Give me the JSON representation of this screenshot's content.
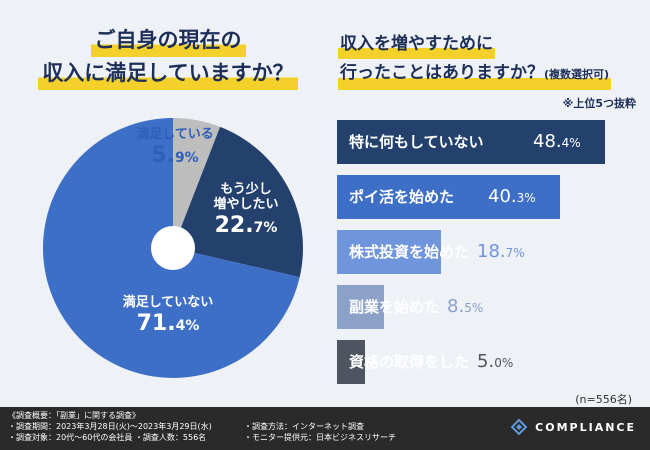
{
  "left_title": [
    "ご自身の現在の",
    "収入に満足していますか？"
  ],
  "right_title": [
    "収入を増やすために",
    "行ったことはありますか？",
    "(複数選択可)"
  ],
  "top5_note": "※上位5つ抜粋",
  "n_note": "(n=556名)",
  "chart_data": [
    {
      "type": "pie",
      "title": "ご自身の現在の 収入に満足していますか？",
      "slices": [
        {
          "label": "満足している",
          "value": 5.9,
          "display": "5.",
          "display_small": "9%",
          "color": "#bdbdbd",
          "label_color": "#2f5fb8"
        },
        {
          "label": "もう少し増やしたい",
          "lines": [
            "もう少し",
            "増やしたい"
          ],
          "value": 22.7,
          "display": "22.",
          "display_small": "7%",
          "color": "#24416e",
          "label_color": "#ffffff"
        },
        {
          "label": "満足していない",
          "value": 71.4,
          "display": "71.",
          "display_small": "4%",
          "color": "#3d6fc7",
          "label_color": "#ffffff"
        }
      ]
    },
    {
      "type": "bar",
      "orientation": "horizontal",
      "title": "収入を増やすために 行ったことはありますか？(複数選択可)",
      "max_value": 48.4,
      "bars": [
        {
          "label": "特に何もしていない",
          "value": 48.4,
          "display": "48.",
          "display_small": "4%",
          "color": "#24416e",
          "value_color": "#ffffff"
        },
        {
          "label": "ポイ活を始めた",
          "value": 40.3,
          "display": "40.",
          "display_small": "3%",
          "color": "#3d6fc7",
          "value_color": "#ffffff"
        },
        {
          "label": "株式投資を始めた",
          "value": 18.7,
          "display": "18.",
          "display_small": "7%",
          "color": "#6f95dc",
          "value_color": "#6f95dc"
        },
        {
          "label": "副業を始めた",
          "value": 8.5,
          "display": "8.",
          "display_small": "5%",
          "color": "#8ba1c8",
          "value_color": "#8ba1c8"
        },
        {
          "label": "資格の取得をした",
          "value": 5.0,
          "display": "5.",
          "display_small": "0%",
          "color": "#4f5560",
          "value_color": "#4f5560"
        }
      ]
    }
  ],
  "footer": {
    "col1": [
      "《調査概要：「副業」に関する調査》",
      "・調査期間：2023年3月28日(火)～2023年3月29日(水)",
      "・調査対象：20代～60代の会社員 ・調査人数：556名"
    ],
    "col2": [
      "・調査方法：インターネット調査",
      "・モニター提供元：日本ビジネスリサーチ"
    ],
    "brand": "COMPLIANCE",
    "brand_logo_icon": "diamond-logo-icon"
  }
}
